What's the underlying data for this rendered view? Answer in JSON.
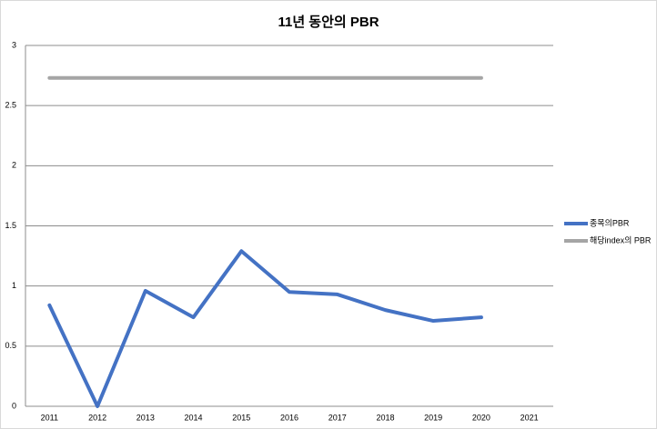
{
  "chart_data": {
    "type": "line",
    "title": "11년 동안의 PBR",
    "categories": [
      "2011",
      "2012",
      "2013",
      "2014",
      "2015",
      "2016",
      "2017",
      "2018",
      "2019",
      "2020",
      "2021"
    ],
    "series": [
      {
        "name": "종목의PBR",
        "color": "#4472c4",
        "values": [
          0.84,
          0,
          0.96,
          0.74,
          1.29,
          0.95,
          0.93,
          0.8,
          0.71,
          0.74,
          null
        ]
      },
      {
        "name": "해당index의 PBR",
        "color": "#a5a5a5",
        "values": [
          2.73,
          2.73,
          2.73,
          2.73,
          2.73,
          2.73,
          2.73,
          2.73,
          2.73,
          2.73,
          null
        ]
      }
    ],
    "ylim": [
      0,
      3
    ],
    "yticks": [
      0,
      0.5,
      1,
      1.5,
      2,
      2.5,
      3
    ],
    "grid": true,
    "legend": "right"
  }
}
